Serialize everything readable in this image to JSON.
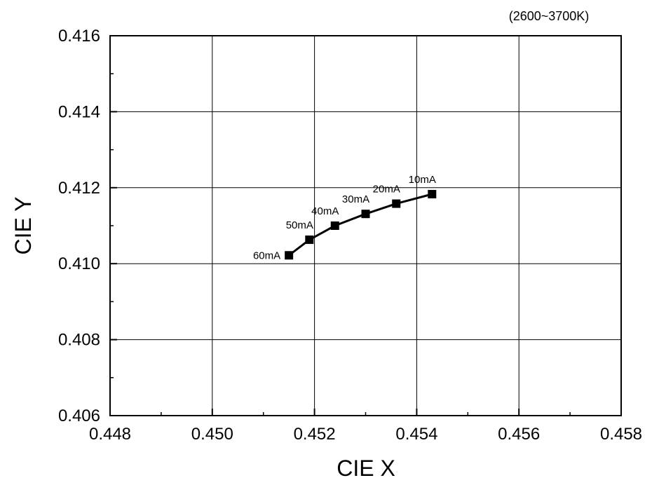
{
  "chart_data": {
    "type": "line",
    "title": "",
    "annotation": "(2600~3700K)",
    "xlabel": "CIE X",
    "ylabel": "CIE Y",
    "xlim": [
      0.448,
      0.458
    ],
    "ylim": [
      0.406,
      0.416
    ],
    "x_ticks": [
      "0.448",
      "0.450",
      "0.452",
      "0.454",
      "0.456",
      "0.458"
    ],
    "y_ticks": [
      "0.406",
      "0.408",
      "0.410",
      "0.412",
      "0.414",
      "0.416"
    ],
    "grid": true,
    "colors": {
      "line": "#000000",
      "marker": "#000000",
      "grid": "#000000"
    },
    "series": [
      {
        "points": [
          {
            "label": "60mA",
            "x": 0.4515,
            "y": 0.41022
          },
          {
            "label": "50mA",
            "x": 0.4519,
            "y": 0.41063
          },
          {
            "label": "40mA",
            "x": 0.4524,
            "y": 0.411
          },
          {
            "label": "30mA",
            "x": 0.453,
            "y": 0.41131
          },
          {
            "label": "20mA",
            "x": 0.4536,
            "y": 0.41158
          },
          {
            "label": "10mA",
            "x": 0.4543,
            "y": 0.41183
          }
        ]
      }
    ]
  }
}
